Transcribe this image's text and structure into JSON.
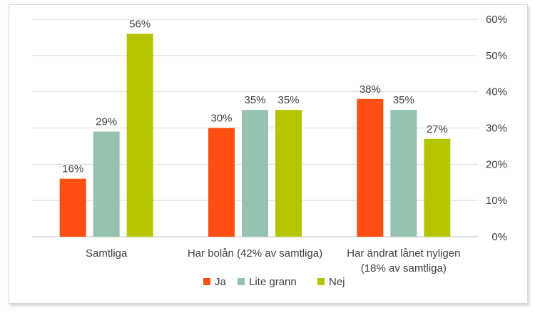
{
  "chart_data": {
    "type": "bar",
    "categories": [
      [
        "Samtliga"
      ],
      [
        "Har bolån (42% av samtliga)"
      ],
      [
        "Har ändrat lånet nyligen",
        "(18% av samtliga)"
      ]
    ],
    "series": [
      {
        "name": "Ja",
        "color": "#ff4f12",
        "values": [
          16,
          30,
          38
        ],
        "labels": [
          "16%",
          "30%",
          "38%"
        ]
      },
      {
        "name": "Lite grann",
        "color": "#96c3b0",
        "values": [
          29,
          35,
          35
        ],
        "labels": [
          "29%",
          "35%",
          "35%"
        ]
      },
      {
        "name": "Nej",
        "color": "#b5c400",
        "values": [
          56,
          35,
          27
        ],
        "labels": [
          "56%",
          "35%",
          "27%"
        ]
      }
    ],
    "ylim": [
      0,
      60
    ],
    "yticks": [
      0,
      10,
      20,
      30,
      40,
      50,
      60
    ],
    "ytick_labels": [
      "0%",
      "10%",
      "20%",
      "30%",
      "40%",
      "50%",
      "60%"
    ],
    "y_axis_side": "right",
    "grid": true,
    "legend": "bottom"
  }
}
